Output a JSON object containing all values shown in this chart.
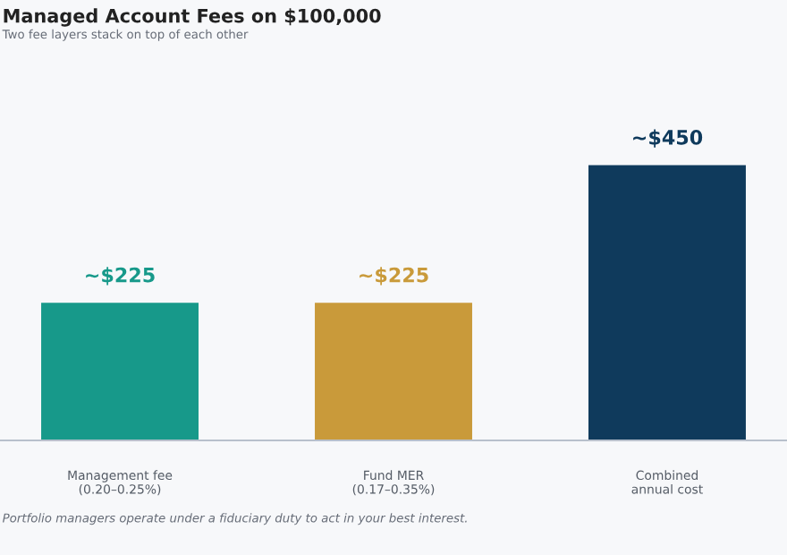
{
  "chart_data": {
    "type": "bar",
    "title": "Managed Account Fees on $100,000",
    "subtitle": "Two fee layers stack on top of each other",
    "categories": [
      "Management fee\n(0.20–0.25%)",
      "Fund MER\n(0.17–0.35%)",
      "Combined\nannual cost"
    ],
    "values": [
      225,
      225,
      450
    ],
    "value_labels": [
      "~$225",
      "~$225",
      "~$450"
    ],
    "colors": [
      "#17998a",
      "#c99a3a",
      "#0f3a5c"
    ],
    "annotations": [
      "Portfolio managers operate under a fiduciary duty to act in your best interest."
    ],
    "grid": false,
    "legend": false
  }
}
